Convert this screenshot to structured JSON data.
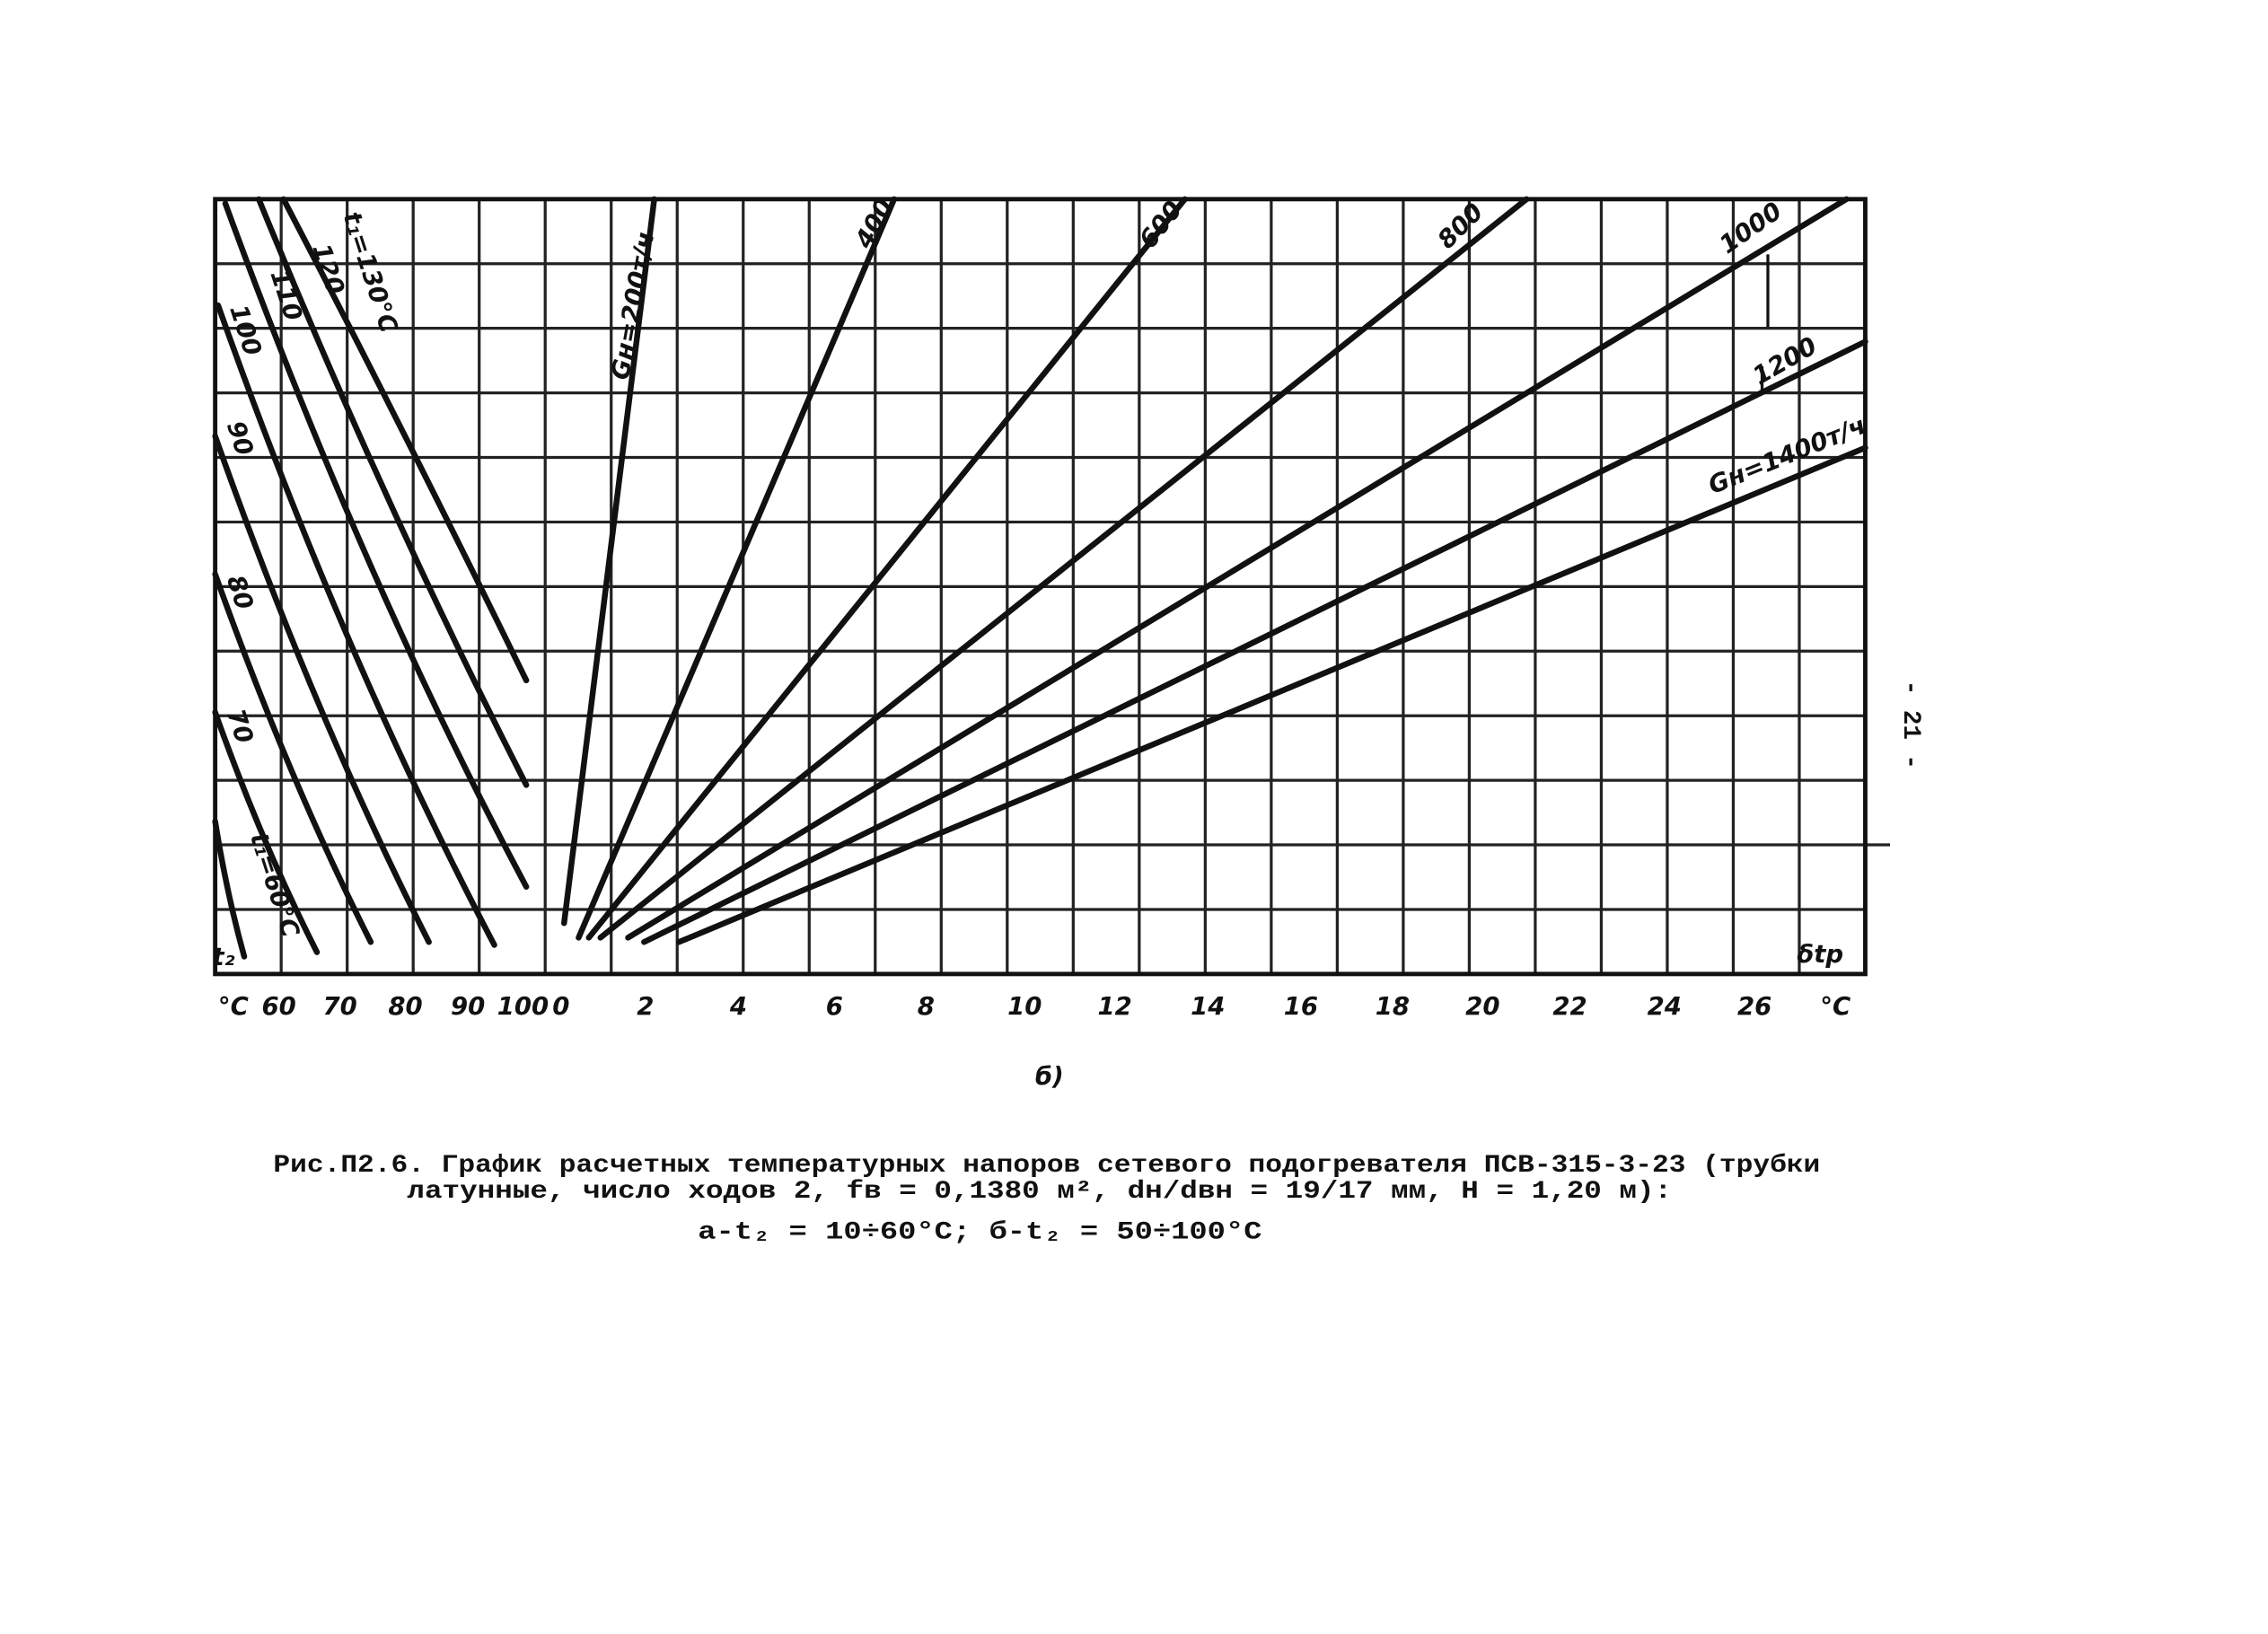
{
  "page_number": "- 21 -",
  "figure": {
    "left_axis_ticks": [
      "°C",
      "60",
      "70",
      "80",
      "90",
      "100"
    ],
    "right_axis_ticks": [
      "0",
      "2",
      "4",
      "6",
      "8",
      "10",
      "12",
      "14",
      "16",
      "18",
      "20",
      "22",
      "24",
      "26",
      "°C"
    ],
    "left_axis_label": "t₂",
    "right_axis_label": "δtр",
    "left_curve_labels": [
      "t₁=60°C",
      "70",
      "80",
      "90",
      "100",
      "110",
      "120",
      "t₁=130°C"
    ],
    "right_curve_labels": [
      "Gн=200т/ч",
      "400",
      "600",
      "800",
      "1000",
      "1200",
      "Gн=1400т/ч"
    ],
    "panel_label": "б)"
  },
  "caption": {
    "lines": [
      "Рис.П2.6. График расчетных температурных напоров сетевого подогревателя ПСВ-315-3-23 (трубки",
      "латунные, число ходов 2, fв = 0,1380 м², dн/dвн = 19/17 мм, H = 1,20 м):",
      "а-t₂ = 10÷60°C; б-t₂ = 50÷100°C"
    ]
  }
}
